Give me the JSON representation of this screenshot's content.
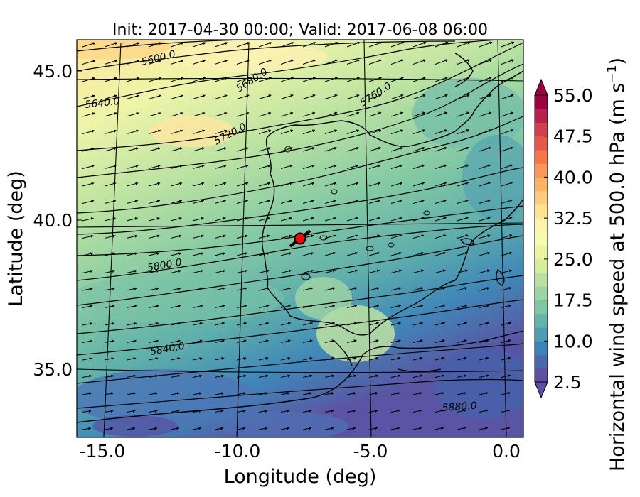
{
  "title": "Init: 2017-04-30 00:00; Valid: 2017-06-08 06:00",
  "xlabel": "Longitude (deg)",
  "ylabel": "Latitude (deg)",
  "x_ticks": [
    "-15.0",
    "-10.0",
    "-5.0",
    "0.0"
  ],
  "y_ticks": [
    "35.0",
    "40.0",
    "45.0"
  ],
  "colorbar": {
    "label": "Horizontal wind speed at 500.0 hPa (m s$^{-1}$)",
    "label_main": "Horizontal wind speed at 500.0 hPa (m s",
    "label_sup": "−1",
    "label_end": ")",
    "ticks": [
      "2.5",
      "10.0",
      "17.5",
      "25.0",
      "32.5",
      "40.0",
      "47.5",
      "55.0"
    ],
    "range": [
      2.5,
      55.0
    ],
    "extend": "both",
    "colors": [
      "#5e4fa2",
      "#4a68ad",
      "#3c83b9",
      "#4b9fb4",
      "#62b4aa",
      "#7dc7a5",
      "#9cd5a4",
      "#b8e2a1",
      "#d3ed9c",
      "#e9f59d",
      "#f6fbb2",
      "#fff3a9",
      "#fee391",
      "#fdcd7a",
      "#fdb365",
      "#fb9656",
      "#f57748",
      "#e65847",
      "#d43d4f",
      "#b9204b",
      "#9e0142"
    ]
  },
  "contour_labels": [
    "5600.0",
    "5640.0",
    "5680.0",
    "5720.0",
    "5760.0",
    "5800.0",
    "5840.0",
    "5880.0"
  ],
  "chart_data": {
    "type": "map",
    "field": "Horizontal wind speed at 500.0 hPa",
    "units": "m s-1",
    "xlim": [
      -16,
      0
    ],
    "ylim": [
      33,
      46
    ],
    "marker": {
      "lon": -7.7,
      "lat": 39.4,
      "color": "#ff0000"
    },
    "geopotential_contours": [
      5600.0,
      5640.0,
      5680.0,
      5720.0,
      5760.0,
      5800.0,
      5840.0,
      5880.0
    ],
    "wind_direction": "westerly to south-westerly"
  }
}
